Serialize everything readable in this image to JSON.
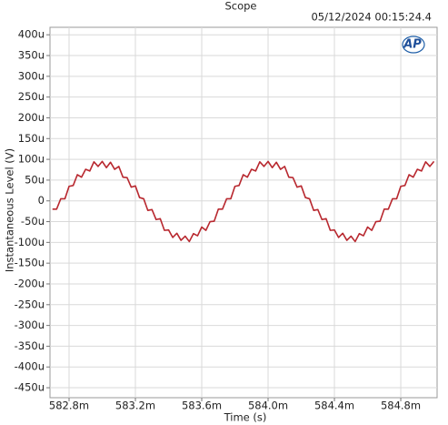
{
  "chart_data": {
    "type": "line",
    "title": "Scope",
    "timestamp": "05/12/2024 00:15:24.4",
    "logo": "AP",
    "x_label": "Time (s)",
    "y_label": "Instantaneous Level (V)",
    "grid": true,
    "xlim": [
      0.582685,
      0.585019
    ],
    "ylim": [
      -0.000474,
      0.000418
    ],
    "xticks": [
      {
        "value": 0.5828,
        "label": "582.8m"
      },
      {
        "value": 0.5832,
        "label": "583.2m"
      },
      {
        "value": 0.5836,
        "label": "583.6m"
      },
      {
        "value": 0.584,
        "label": "584.0m"
      },
      {
        "value": 0.5844,
        "label": "584.4m"
      },
      {
        "value": 0.5848,
        "label": "584.8m"
      }
    ],
    "yticks": [
      {
        "value": 0.0004,
        "label": "400u"
      },
      {
        "value": 0.00035,
        "label": "350u"
      },
      {
        "value": 0.0003,
        "label": "300u"
      },
      {
        "value": 0.00025,
        "label": "250u"
      },
      {
        "value": 0.0002,
        "label": "200u"
      },
      {
        "value": 0.00015,
        "label": "150u"
      },
      {
        "value": 0.0001,
        "label": "100u"
      },
      {
        "value": 5e-05,
        "label": "50u"
      },
      0,
      {
        "value": -5e-05,
        "label": "-50u"
      },
      {
        "value": -0.0001,
        "label": "-100u"
      },
      {
        "value": -0.00015,
        "label": "-150u"
      },
      {
        "value": -0.0002,
        "label": "-200u"
      },
      {
        "value": -0.00025,
        "label": "-250u"
      },
      {
        "value": -0.0003,
        "label": "-300u"
      },
      {
        "value": -0.00035,
        "label": "-350u"
      },
      {
        "value": -0.0004,
        "label": "-400u"
      },
      {
        "value": -0.00045,
        "label": "-450u"
      }
    ],
    "x": [
      0.5827,
      0.582725,
      0.58275,
      0.582775,
      0.5828,
      0.582825,
      0.58285,
      0.582875,
      0.5829,
      0.582925,
      0.58295,
      0.582975,
      0.583,
      0.583025,
      0.58305,
      0.583075,
      0.5831,
      0.583125,
      0.58315,
      0.583175,
      0.5832,
      0.583225,
      0.58325,
      0.583275,
      0.5833,
      0.583325,
      0.58335,
      0.583375,
      0.5834,
      0.583425,
      0.58345,
      0.583475,
      0.5835,
      0.583525,
      0.58355,
      0.583575,
      0.5836,
      0.583625,
      0.58365,
      0.583675,
      0.5837,
      0.583725,
      0.58375,
      0.583775,
      0.5838,
      0.583825,
      0.58385,
      0.583875,
      0.5839,
      0.583925,
      0.58395,
      0.583975,
      0.584,
      0.584025,
      0.58405,
      0.584075,
      0.5841,
      0.584125,
      0.58415,
      0.584175,
      0.5842,
      0.584225,
      0.58425,
      0.584275,
      0.5843,
      0.584325,
      0.58435,
      0.584375,
      0.5844,
      0.584425,
      0.58445,
      0.584475,
      0.5845,
      0.584525,
      0.58455,
      0.584575,
      0.5846,
      0.584625,
      0.58465,
      0.584675,
      0.5847,
      0.584725,
      0.58475,
      0.584775,
      0.5848,
      0.584825,
      0.58485,
      0.584875,
      0.5849,
      0.584925,
      0.58495,
      0.584975,
      0.585
    ],
    "series": [
      {
        "color": "#b8282f",
        "values": [
          -2e-05,
          -2e-05,
          5e-06,
          5e-06,
          3.5e-05,
          3.7e-05,
          6.3e-05,
          5.7e-05,
          7.6e-05,
          7.2e-05,
          9.4e-05,
          8.3e-05,
          9.5e-05,
          8e-05,
          9.3e-05,
          7.6e-05,
          8.3e-05,
          5.7e-05,
          5.6e-05,
          3.3e-05,
          3.6e-05,
          8e-06,
          5e-06,
          -2.3e-05,
          -2.1e-05,
          -4.5e-05,
          -4.3e-05,
          -7.1e-05,
          -7e-05,
          -8.8e-05,
          -7.8e-05,
          -9.5e-05,
          -8.5e-05,
          -9.8e-05,
          -7.9e-05,
          -8.4e-05,
          -6.3e-05,
          -7.1e-05,
          -5e-05,
          -4.9e-05,
          -2e-05,
          -2e-05,
          5e-06,
          5e-06,
          3.5e-05,
          3.7e-05,
          6.3e-05,
          5.7e-05,
          7.6e-05,
          7.2e-05,
          9.4e-05,
          8.3e-05,
          9.5e-05,
          8e-05,
          9.3e-05,
          7.6e-05,
          8.3e-05,
          5.7e-05,
          5.6e-05,
          3.3e-05,
          3.6e-05,
          8e-06,
          5e-06,
          -2.3e-05,
          -2.1e-05,
          -4.5e-05,
          -4.3e-05,
          -7.1e-05,
          -7e-05,
          -8.8e-05,
          -7.8e-05,
          -9.5e-05,
          -8.5e-05,
          -9.8e-05,
          -7.9e-05,
          -8.4e-05,
          -6.3e-05,
          -7.1e-05,
          -5e-05,
          -4.9e-05,
          -2e-05,
          -2e-05,
          5e-06,
          5e-06,
          3.5e-05,
          3.7e-05,
          6.3e-05,
          5.7e-05,
          7.6e-05,
          7.2e-05,
          9.4e-05,
          8.3e-05,
          9.5e-05
        ]
      }
    ]
  }
}
